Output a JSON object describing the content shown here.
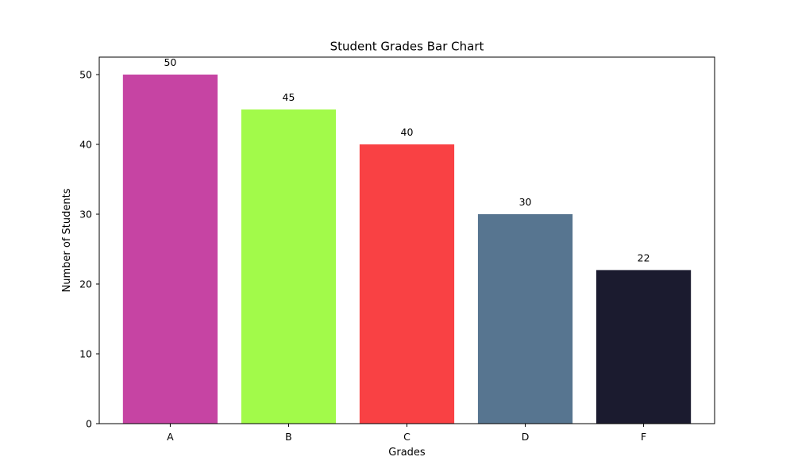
{
  "chart_data": {
    "type": "bar",
    "title": "Student Grades Bar Chart",
    "xlabel": "Grades",
    "ylabel": "Number of Students",
    "categories": [
      "A",
      "B",
      "C",
      "D",
      "F"
    ],
    "values": [
      50,
      45,
      40,
      30,
      22
    ],
    "data_labels": [
      "50",
      "45",
      "40",
      "30",
      "22"
    ],
    "colors": [
      "#c644a3",
      "#a2fa4a",
      "#f94144",
      "#577590",
      "#1b1b2f"
    ],
    "ylim": [
      0,
      52.5
    ],
    "yticks": [
      0,
      10,
      20,
      30,
      40,
      50
    ],
    "ytick_labels": [
      "0",
      "10",
      "20",
      "30",
      "40",
      "50"
    ],
    "grid": false,
    "legend": "none"
  }
}
